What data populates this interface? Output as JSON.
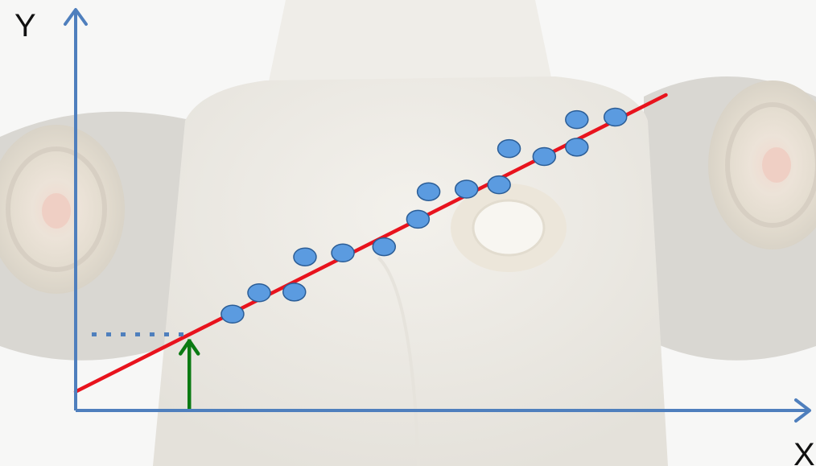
{
  "chart_data": {
    "type": "scatter",
    "title": "",
    "xlabel": "X",
    "ylabel": "Y",
    "xlim": [
      0,
      100
    ],
    "ylim": [
      0,
      100
    ],
    "grid": false,
    "legend": "none",
    "points": [
      {
        "x": 23.6,
        "y": 26.6
      },
      {
        "x": 27.6,
        "y": 32.5
      },
      {
        "x": 32.9,
        "y": 32.7
      },
      {
        "x": 34.5,
        "y": 42.4
      },
      {
        "x": 40.2,
        "y": 43.5
      },
      {
        "x": 46.4,
        "y": 45.2
      },
      {
        "x": 51.5,
        "y": 52.8
      },
      {
        "x": 53.1,
        "y": 60.4
      },
      {
        "x": 58.8,
        "y": 61.1
      },
      {
        "x": 63.7,
        "y": 62.3
      },
      {
        "x": 65.2,
        "y": 72.3
      },
      {
        "x": 70.5,
        "y": 70.1
      },
      {
        "x": 75.4,
        "y": 72.7
      },
      {
        "x": 75.4,
        "y": 80.3
      },
      {
        "x": 81.2,
        "y": 81.0
      }
    ],
    "regression_line": {
      "x": [
        0,
        88.8
      ],
      "y": [
        5.2,
        87.1
      ]
    },
    "marker": {
      "x": 17.1,
      "y": 21.0
    },
    "colors": {
      "axes": "#4f7fbd",
      "points_fill": "#5b9be0",
      "points_stroke": "#2b5d96",
      "regression": "#e8131d",
      "marker_arrow": "#0a7a12",
      "marker_dots": "#4f7fbd"
    }
  }
}
